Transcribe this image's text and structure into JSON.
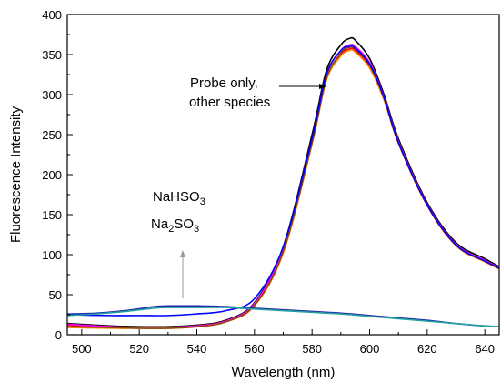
{
  "chart_data": {
    "type": "line",
    "xlabel": "Wavelength (nm)",
    "ylabel": "Fluorescence Intensity",
    "xlim": [
      495,
      645
    ],
    "ylim": [
      0,
      400
    ],
    "x_ticks": [
      500,
      520,
      540,
      560,
      580,
      600,
      620,
      640
    ],
    "y_ticks": [
      0,
      50,
      100,
      150,
      200,
      250,
      300,
      350,
      400
    ],
    "grid": false,
    "legend": "none",
    "annotations": {
      "probe_line1": "Probe only,",
      "probe_line2": "other species",
      "nahso3": {
        "a": "NaHSO",
        "sub": "3"
      },
      "na2so3": {
        "a": "Na",
        "sub1": "2",
        "b": "SO",
        "sub2": "3"
      }
    },
    "series": [
      {
        "color": "#000000",
        "x": [
          495,
          510,
          520,
          530,
          540,
          550,
          560,
          570,
          580,
          585,
          590,
          593,
          595,
          600,
          605,
          610,
          620,
          630,
          640,
          645
        ],
        "y": [
          14,
          11,
          10,
          10,
          12,
          18,
          40,
          110,
          250,
          330,
          362,
          370,
          368,
          345,
          300,
          245,
          165,
          115,
          95,
          85
        ]
      },
      {
        "color": "#ff0000",
        "x": [
          495,
          510,
          520,
          530,
          540,
          550,
          560,
          570,
          580,
          585,
          590,
          593,
          595,
          600,
          605,
          610,
          620,
          630,
          640,
          645
        ],
        "y": [
          12,
          10,
          9,
          9,
          11,
          17,
          38,
          105,
          240,
          320,
          350,
          357,
          355,
          335,
          295,
          240,
          162,
          112,
          92,
          83
        ]
      },
      {
        "color": "#ff00ff",
        "x": [
          495,
          510,
          520,
          530,
          540,
          550,
          560,
          570,
          580,
          585,
          590,
          593,
          595,
          600,
          605,
          610,
          620,
          630,
          640,
          645
        ],
        "y": [
          13,
          10,
          9,
          9,
          11,
          17,
          39,
          108,
          245,
          325,
          355,
          362,
          360,
          340,
          297,
          242,
          163,
          113,
          93,
          84
        ]
      },
      {
        "color": "#ff8c00",
        "x": [
          495,
          510,
          520,
          530,
          540,
          550,
          560,
          570,
          580,
          585,
          590,
          593,
          595,
          600,
          605,
          610,
          620,
          630,
          640,
          645
        ],
        "y": [
          9,
          8,
          8,
          8,
          10,
          16,
          36,
          102,
          238,
          318,
          348,
          355,
          353,
          333,
          293,
          239,
          161,
          111,
          91,
          82
        ]
      },
      {
        "color": "#8b4513",
        "x": [
          495,
          510,
          520,
          530,
          540,
          550,
          560,
          570,
          580,
          585,
          590,
          593,
          595,
          600,
          605,
          610,
          620,
          630,
          640,
          645
        ],
        "y": [
          10,
          9,
          8,
          8,
          10,
          16,
          37,
          104,
          240,
          320,
          352,
          359,
          357,
          337,
          296,
          241,
          162,
          112,
          92,
          83
        ]
      },
      {
        "color": "#0000ff",
        "x": [
          495,
          510,
          520,
          530,
          540,
          550,
          560,
          570,
          580,
          585,
          590,
          593,
          595,
          600,
          605,
          610,
          620,
          630,
          640,
          645
        ],
        "y": [
          25,
          24,
          24,
          24,
          26,
          30,
          45,
          110,
          245,
          325,
          355,
          360,
          358,
          338,
          296,
          240,
          162,
          112,
          92,
          83
        ]
      },
      {
        "color": "#2222aa",
        "x": [
          495,
          505,
          515,
          525,
          530,
          535,
          540,
          550,
          560,
          570,
          580,
          590,
          600,
          610,
          620,
          630,
          640,
          645
        ],
        "y": [
          26,
          27,
          30,
          35,
          36,
          36,
          36,
          35,
          33,
          31,
          29,
          27,
          24,
          21,
          18,
          14,
          11,
          10
        ]
      },
      {
        "color": "#20a0a0",
        "x": [
          495,
          505,
          515,
          525,
          530,
          535,
          540,
          550,
          560,
          570,
          580,
          590,
          600,
          610,
          620,
          630,
          640,
          645
        ],
        "y": [
          24,
          26,
          29,
          33,
          34,
          34,
          34,
          34,
          32,
          30,
          28,
          26,
          23,
          20,
          17,
          14,
          11,
          10
        ]
      }
    ]
  }
}
